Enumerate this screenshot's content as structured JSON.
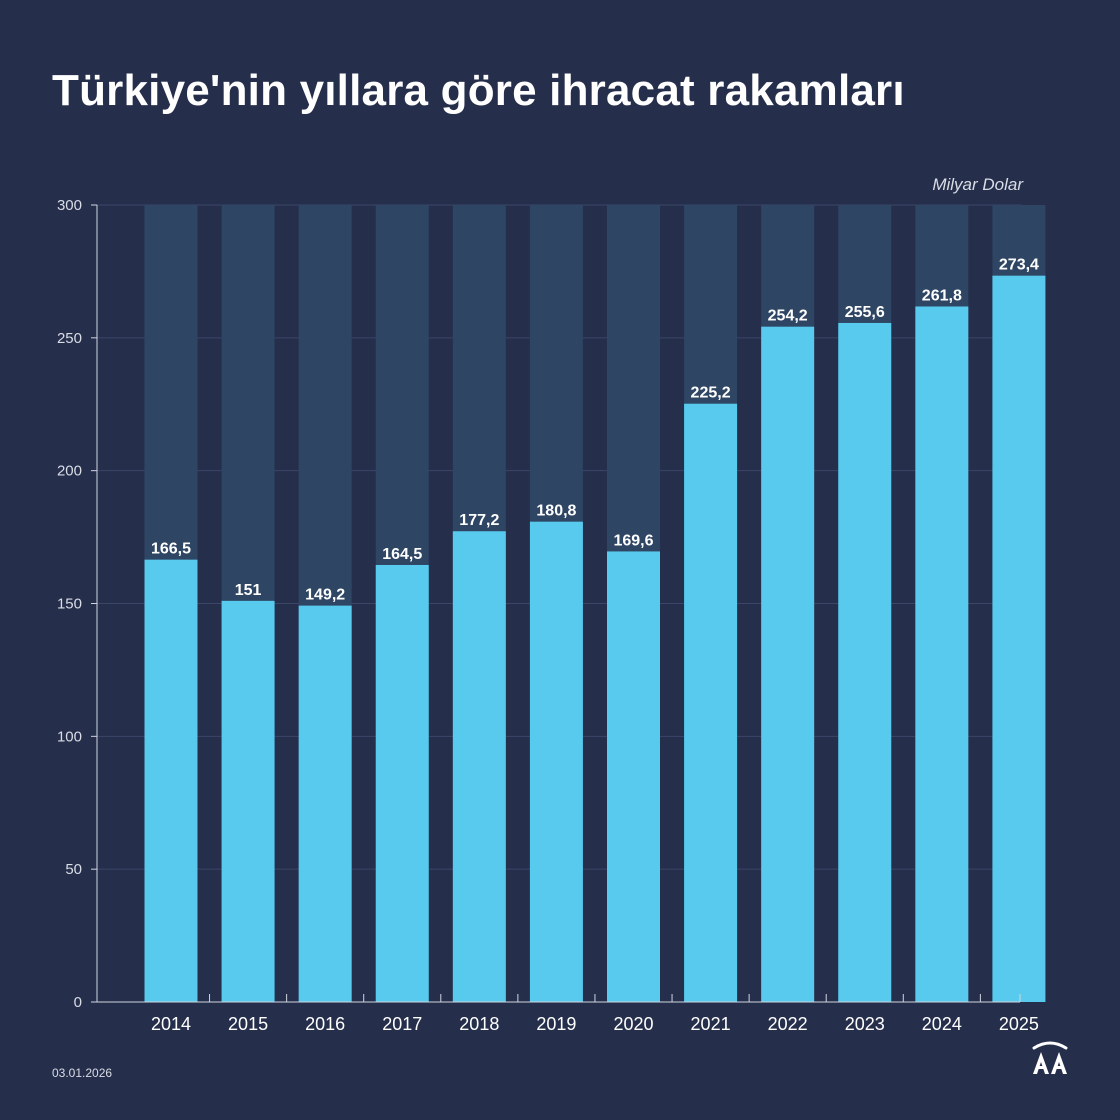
{
  "title": "Türkiye'nin yıllara göre ihracat rakamları",
  "unit": "Milyar Dolar",
  "date": "03.01.2026",
  "logo": "AA-logo",
  "colors": {
    "background": "#252e4b",
    "bar": "#58caee",
    "bar_track": "#2e4564",
    "grid": "#3b4668",
    "axis": "#d0d5df"
  },
  "chart_data": {
    "type": "bar",
    "title": "Türkiye'nin yıllara göre ihracat rakamları",
    "ylabel": "Milyar Dolar",
    "xlabel": "",
    "categories": [
      "2014",
      "2015",
      "2016",
      "2017",
      "2018",
      "2019",
      "2020",
      "2021",
      "2022",
      "2023",
      "2024",
      "2025"
    ],
    "values": [
      166.5,
      151,
      149.2,
      164.5,
      177.2,
      180.8,
      169.6,
      225.2,
      254.2,
      255.6,
      261.8,
      273.4
    ],
    "value_labels": [
      "166,5",
      "151",
      "149,2",
      "164,5",
      "177,2",
      "180,8",
      "169,6",
      "225,2",
      "254,2",
      "255,6",
      "261,8",
      "273,4"
    ],
    "yticks": [
      "0",
      "50",
      "100",
      "150",
      "200",
      "250",
      "300"
    ],
    "ylim": [
      0,
      300
    ],
    "grid": true,
    "legend": "none"
  }
}
